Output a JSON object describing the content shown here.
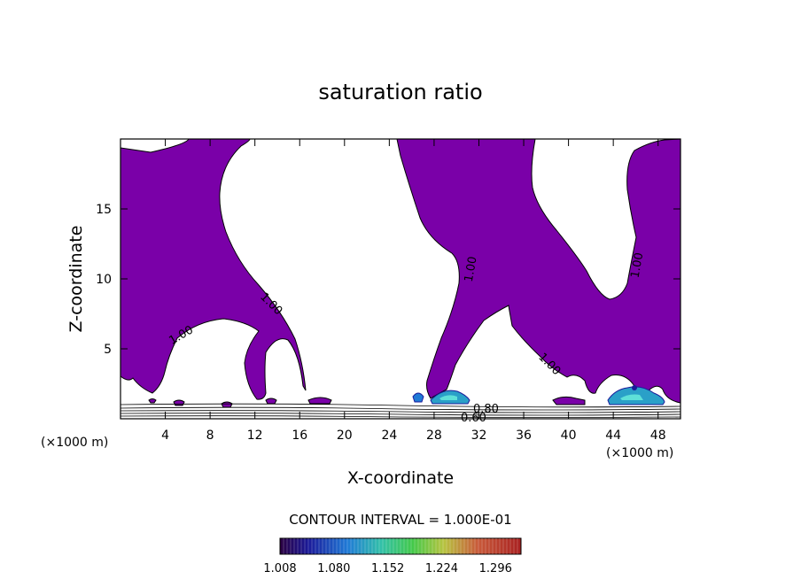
{
  "chart_data": {
    "type": "filled-contour",
    "title": "saturation ratio",
    "xlabel": "X-coordinate",
    "ylabel": "Z-coordinate",
    "x_unit_left": "(×1000 m)",
    "x_unit_right": "(×1000 m)",
    "xlim": [
      0,
      50
    ],
    "ylim": [
      0,
      20
    ],
    "x_ticks": [
      4,
      8,
      12,
      16,
      20,
      24,
      28,
      32,
      36,
      40,
      44,
      48
    ],
    "y_ticks": [
      5,
      10,
      15
    ],
    "contour_labels": [
      "1.00",
      "1.00",
      "1.00",
      "1.00",
      "1.00",
      "0.80",
      "0.60"
    ],
    "contour_interval_text": "CONTOUR INTERVAL = 1.000E-01",
    "colorbar": {
      "tick_labels": [
        "1.008",
        "1.080",
        "1.152",
        "1.224",
        "1.296"
      ],
      "min": 1.008,
      "max": 1.33
    },
    "fill_color": "#7a00a8"
  }
}
